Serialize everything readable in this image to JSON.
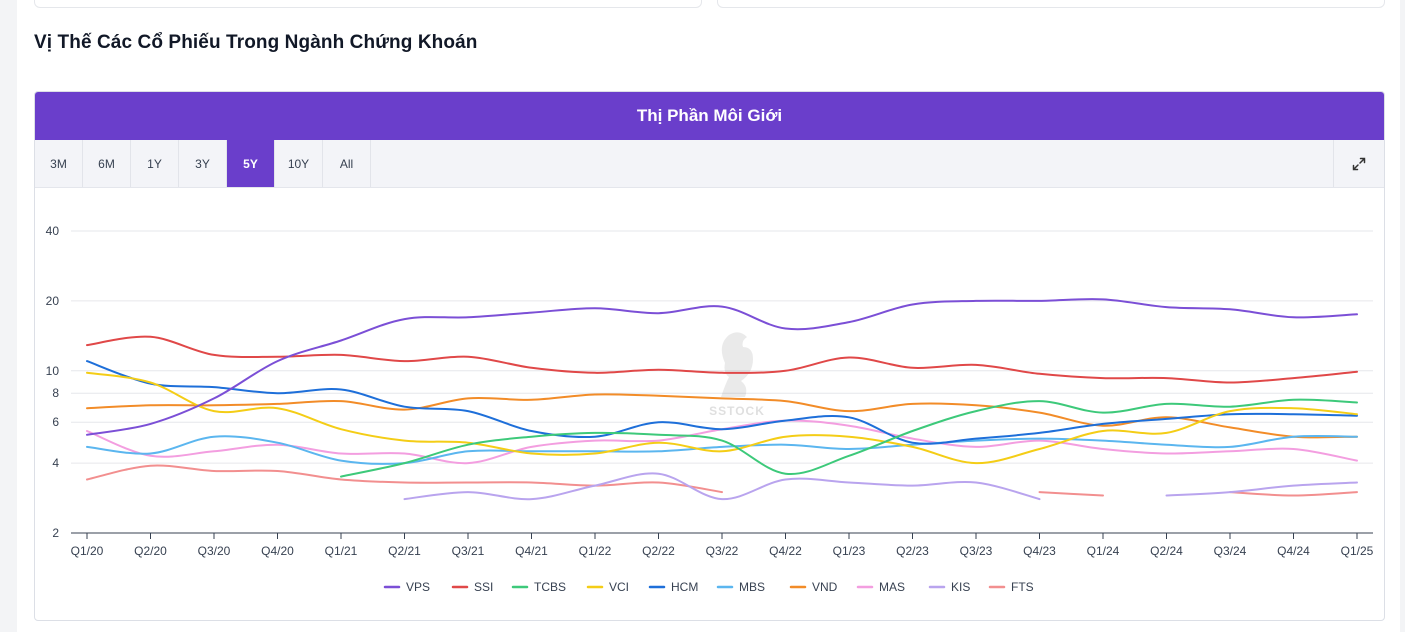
{
  "section": {
    "title": "Vị Thế Các Cổ Phiếu Trong Ngành Chứng Khoán"
  },
  "chart_panel": {
    "title": "Thị Phần Môi Giới",
    "ranges": [
      "3M",
      "6M",
      "1Y",
      "3Y",
      "5Y",
      "10Y",
      "All"
    ],
    "active_range": "5Y",
    "expand_icon": "expand-icon"
  },
  "watermark": "SSTOCK",
  "chart_data": {
    "type": "line",
    "title": "Thị Phần Môi Giới",
    "xlabel": "",
    "ylabel": "",
    "yscale": "log",
    "ylim": [
      2,
      40
    ],
    "yticks": [
      2,
      4,
      6,
      8,
      10,
      20,
      40
    ],
    "grid": true,
    "legend_position": "bottom",
    "categories": [
      "Q1/20",
      "Q2/20",
      "Q3/20",
      "Q4/20",
      "Q1/21",
      "Q2/21",
      "Q3/21",
      "Q4/21",
      "Q1/22",
      "Q2/22",
      "Q3/22",
      "Q4/22",
      "Q1/23",
      "Q2/23",
      "Q3/23",
      "Q4/23",
      "Q1/24",
      "Q2/24",
      "Q3/24",
      "Q4/24",
      "Q1/25"
    ],
    "series": [
      {
        "name": "VPS",
        "color": "#7b4fd6",
        "values": [
          5.3,
          5.9,
          7.6,
          11.0,
          13.5,
          16.7,
          17.0,
          17.8,
          18.6,
          17.7,
          18.9,
          15.2,
          16.2,
          19.3,
          20.0,
          20.0,
          20.3,
          18.8,
          18.4,
          17.0,
          17.5
        ]
      },
      {
        "name": "SSI",
        "color": "#e04848",
        "values": [
          12.9,
          14.0,
          11.7,
          11.5,
          11.7,
          11.0,
          11.5,
          10.3,
          9.8,
          10.1,
          9.8,
          10.0,
          11.4,
          10.3,
          10.6,
          9.7,
          9.3,
          9.3,
          8.9,
          9.3,
          9.9
        ]
      },
      {
        "name": "TCBS",
        "color": "#3dc97a",
        "values": [
          null,
          null,
          null,
          null,
          3.5,
          4.0,
          4.8,
          5.2,
          5.4,
          5.3,
          5.0,
          3.6,
          4.3,
          5.5,
          6.7,
          7.4,
          6.6,
          7.2,
          7.0,
          7.5,
          7.3
        ]
      },
      {
        "name": "VCI",
        "color": "#f4cd16",
        "values": [
          9.8,
          8.9,
          6.7,
          6.9,
          5.6,
          5.0,
          4.9,
          4.4,
          4.4,
          4.9,
          4.5,
          5.2,
          5.2,
          4.7,
          4.0,
          4.6,
          5.5,
          5.4,
          6.7,
          6.9,
          6.5
        ]
      },
      {
        "name": "HCM",
        "color": "#1e6fd9",
        "values": [
          11.0,
          8.8,
          8.5,
          8.0,
          8.3,
          7.0,
          6.7,
          5.5,
          5.2,
          6.0,
          5.6,
          6.1,
          6.3,
          4.9,
          5.1,
          5.4,
          5.9,
          6.2,
          6.5,
          6.5,
          6.4
        ]
      },
      {
        "name": "MBS",
        "color": "#5bb6ef",
        "values": [
          4.7,
          4.4,
          5.2,
          4.9,
          4.1,
          4.0,
          4.5,
          4.5,
          4.5,
          4.5,
          4.7,
          4.8,
          4.6,
          4.8,
          5.0,
          5.1,
          5.0,
          4.8,
          4.7,
          5.2,
          5.2
        ]
      },
      {
        "name": "VND",
        "color": "#f28c28",
        "values": [
          6.9,
          7.1,
          7.1,
          7.2,
          7.4,
          6.8,
          7.6,
          7.5,
          7.9,
          7.8,
          7.6,
          7.4,
          6.7,
          7.2,
          7.1,
          6.6,
          5.8,
          6.3,
          5.7,
          5.2,
          5.2
        ]
      },
      {
        "name": "MAS",
        "color": "#f39ee0",
        "values": [
          5.5,
          4.3,
          4.5,
          4.8,
          4.4,
          4.4,
          4.0,
          4.7,
          5.0,
          5.0,
          5.6,
          6.1,
          5.8,
          5.1,
          4.7,
          5.0,
          4.6,
          4.4,
          4.5,
          4.6,
          4.1
        ]
      },
      {
        "name": "KIS",
        "color": "#b9a4ee",
        "values": [
          null,
          null,
          null,
          null,
          null,
          2.8,
          3.0,
          2.8,
          3.2,
          3.6,
          2.8,
          3.4,
          3.3,
          3.2,
          3.3,
          2.8,
          null,
          2.9,
          3.0,
          3.2,
          3.3
        ]
      },
      {
        "name": "FTS",
        "color": "#f28f8f",
        "values": [
          3.4,
          3.9,
          3.7,
          3.7,
          3.4,
          3.3,
          3.3,
          3.3,
          3.2,
          3.3,
          3.0,
          null,
          null,
          null,
          null,
          3.0,
          2.9,
          null,
          3.0,
          2.9,
          3.0
        ]
      }
    ]
  }
}
